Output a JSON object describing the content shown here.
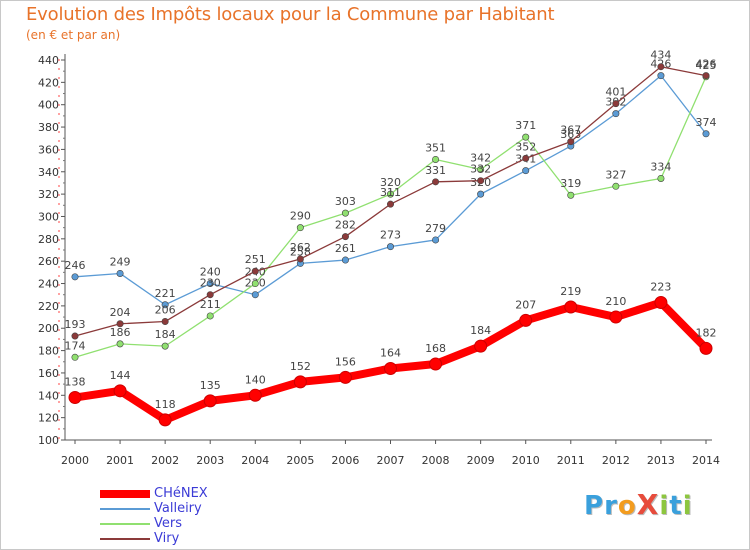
{
  "title": "Evolution des Impôts locaux pour la Commune par Habitant",
  "subtitle": "(en € et par an)",
  "logo": {
    "text": "ProXiti",
    "letters": [
      "P",
      "r",
      "o",
      "X",
      "i",
      "t",
      "i"
    ],
    "colors": [
      "#3aa0dc",
      "#3aa0dc",
      "#f39c1e",
      "#e74c3c",
      "#8dc63f",
      "#3aa0dc",
      "#8dc63f"
    ]
  },
  "chart_data": {
    "type": "line",
    "title": "Evolution des Impôts locaux pour la Commune par Habitant",
    "subtitle": "(en € et par an)",
    "xlabel": "",
    "ylabel": "",
    "ylim": [
      100,
      440
    ],
    "yticks": [
      100,
      120,
      140,
      160,
      180,
      200,
      220,
      240,
      260,
      280,
      300,
      320,
      340,
      360,
      380,
      400,
      420,
      440
    ],
    "x": [
      "2000",
      "2001",
      "2002",
      "2003",
      "2004",
      "2005",
      "2006",
      "2007",
      "2008",
      "2009",
      "2010",
      "2011",
      "2012",
      "2013",
      "2014"
    ],
    "grid": false,
    "legend_position": "bottom-left",
    "series": [
      {
        "name": "CHéNEX",
        "color": "#ff0000",
        "bold": true,
        "values": [
          138,
          144,
          118,
          135,
          140,
          152,
          156,
          164,
          168,
          184,
          207,
          219,
          210,
          223,
          182
        ]
      },
      {
        "name": "Valleiry",
        "color": "#5b9bd5",
        "bold": false,
        "values": [
          246,
          249,
          221,
          240,
          230,
          258,
          261,
          273,
          279,
          320,
          341,
          363,
          392,
          426,
          374
        ]
      },
      {
        "name": "Vers",
        "color": "#90e070",
        "bold": false,
        "values": [
          174,
          186,
          184,
          211,
          240,
          290,
          303,
          320,
          351,
          342,
          371,
          319,
          327,
          334,
          425
        ]
      },
      {
        "name": "Viry",
        "color": "#8b3a3a",
        "bold": false,
        "values": [
          193,
          204,
          206,
          230,
          251,
          262,
          282,
          311,
          331,
          332,
          352,
          367,
          401,
          434,
          426
        ]
      }
    ]
  }
}
